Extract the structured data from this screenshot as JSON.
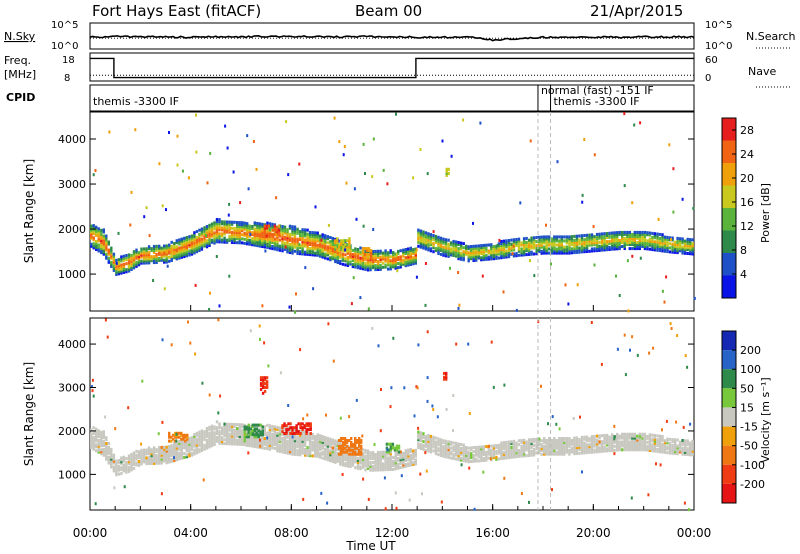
{
  "header": {
    "site": "Fort Hays East (fitACF)",
    "beam": "Beam 00",
    "date": "21/Apr/2015"
  },
  "colors": {
    "black": "#000000",
    "dashed_marker": "#bbbbbb",
    "scatter_grey": "#c8c8c0",
    "power_scale": [
      "#0a14e6",
      "#1e50c8",
      "#2e8a4a",
      "#5ab43c",
      "#c8c81e",
      "#f0a00a",
      "#f06414",
      "#e61e1e"
    ],
    "velocity_scale": [
      "#1428b4",
      "#2864c8",
      "#2e8a4a",
      "#78c83c",
      "#c8c8c0",
      "#f0a00a",
      "#f07814",
      "#f03c14",
      "#e61414"
    ]
  },
  "chart_data": [
    {
      "type": "line",
      "name": "summary-noise",
      "left_label": "N.Sky",
      "right_label": "N.Search",
      "left_ticks": [
        "10^5",
        "10^0"
      ],
      "right_ticks": [
        "10^5",
        "10^0"
      ],
      "note": "noise levels across 00:00–24:00 UT, log scale",
      "x": [
        0,
        1,
        2,
        3,
        4,
        5,
        6,
        7,
        8,
        9,
        10,
        11,
        12,
        13,
        14,
        15,
        16,
        17,
        18,
        19,
        20,
        21,
        22,
        23,
        24
      ],
      "series": [
        {
          "name": "N.Sky",
          "values": [
            2.2,
            2.4,
            2.3,
            2.3,
            2.2,
            2.3,
            2.3,
            2.4,
            2.4,
            2.3,
            2.3,
            2.4,
            2.3,
            2.2,
            2.2,
            2.3,
            1.6,
            1.9,
            2.2,
            2.2,
            2.3,
            2.2,
            2.3,
            2.3,
            2.3
          ]
        },
        {
          "name": "N.Search",
          "values": [
            2.0,
            2.0,
            2.0,
            2.0,
            2.0,
            2.0,
            2.0,
            2.0,
            2.0,
            2.0,
            2.0,
            2.0,
            2.0,
            2.0,
            2.0,
            2.0,
            2.0,
            2.0,
            2.0,
            2.0,
            2.0,
            2.0,
            2.0,
            2.0,
            2.0
          ]
        }
      ]
    },
    {
      "type": "line",
      "name": "summary-frequency",
      "left_label": "Freq.",
      "left_unit": "[MHz]",
      "right_label": "Nave",
      "left_ticks": [
        "18",
        "8"
      ],
      "right_ticks": [
        "60",
        "0"
      ],
      "series": [
        {
          "name": "Freq.",
          "x": [
            0,
            0.95,
            0.95,
            12.95,
            12.95,
            24
          ],
          "values": [
            17.0,
            17.0,
            9.0,
            9.0,
            17.0,
            17.0
          ]
        },
        {
          "name": "Nave",
          "x": [
            0,
            24
          ],
          "values": [
            12,
            12
          ]
        }
      ]
    },
    {
      "type": "table",
      "name": "cpid",
      "label": "CPID",
      "segments": [
        {
          "start_ut": 0,
          "end_ut": 17.8,
          "text": "themis -3300 IF"
        },
        {
          "start_ut": 17.8,
          "end_ut": 18.3,
          "text": "normal (fast) -151 IF"
        },
        {
          "start_ut": 18.3,
          "end_ut": 24,
          "text": "themis -3300 IF"
        }
      ]
    },
    {
      "type": "heatmap",
      "name": "power",
      "ylabel": "Slant Range [km]",
      "xlim": [
        0,
        24
      ],
      "ylim": [
        180,
        4600
      ],
      "yticks": [
        1000,
        2000,
        3000,
        4000
      ],
      "colorbar": {
        "label": "Power [dB]",
        "ticks": [
          "4",
          "8",
          "12",
          "16",
          "20",
          "24",
          "28"
        ],
        "range": [
          0,
          30
        ]
      },
      "markers_ut": [
        17.8,
        18.3
      ],
      "bands": [
        {
          "x": [
            0,
            0.5,
            1.0,
            1.5,
            2.0,
            3.0,
            4.0,
            5.0,
            6.0,
            7.0,
            8.0,
            9.0,
            10.0,
            11.0,
            12.0,
            12.9
          ],
          "center_km": [
            1900,
            1750,
            1200,
            1300,
            1450,
            1500,
            1700,
            2000,
            1950,
            1900,
            1800,
            1700,
            1500,
            1350,
            1350,
            1450
          ],
          "width_km": [
            500,
            550,
            350,
            400,
            350,
            400,
            450,
            500,
            450,
            550,
            600,
            500,
            500,
            450,
            400,
            350
          ],
          "peak_value": 26
        },
        {
          "x": [
            13.0,
            14.0,
            15.0,
            16.0,
            17.0,
            18.0,
            19.0,
            20.0,
            21.0,
            22.0,
            23.0,
            24.0
          ],
          "center_km": [
            1850,
            1650,
            1500,
            1550,
            1650,
            1700,
            1700,
            1750,
            1800,
            1800,
            1700,
            1650
          ],
          "width_km": [
            400,
            400,
            350,
            350,
            400,
            400,
            400,
            400,
            400,
            400,
            350,
            350
          ],
          "peak_value": 20
        }
      ],
      "patches": [
        {
          "ut": 7.2,
          "km": 2000,
          "dut": 0.6,
          "dkm": 250,
          "value": 25
        },
        {
          "ut": 10.0,
          "km": 1700,
          "dut": 0.6,
          "dkm": 300,
          "value": 17
        },
        {
          "ut": 11.0,
          "km": 1500,
          "dut": 0.4,
          "dkm": 250,
          "value": 22
        },
        {
          "ut": 14.2,
          "km": 3300,
          "dut": 0.15,
          "dkm": 150,
          "value": 15
        }
      ]
    },
    {
      "type": "heatmap",
      "name": "velocity",
      "ylabel": "Slant Range [km]",
      "xlabel": "Time UT",
      "xticks": [
        "00:00",
        "04:00",
        "08:00",
        "12:00",
        "16:00",
        "20:00",
        "00:00"
      ],
      "xlim": [
        0,
        24
      ],
      "ylim": [
        180,
        4600
      ],
      "yticks": [
        1000,
        2000,
        3000,
        4000
      ],
      "colorbar": {
        "label": "Velocity [m s⁻¹]",
        "ticks": [
          "200",
          "100",
          "50",
          "15",
          "-15",
          "-50",
          "-100",
          "-200"
        ],
        "range": [
          -250,
          250
        ]
      },
      "markers_ut": [
        17.8,
        18.3
      ],
      "bands": [
        {
          "x": [
            0,
            0.5,
            1.0,
            1.5,
            2.0,
            3.0,
            4.0,
            5.0,
            6.0,
            7.0,
            8.0,
            9.0,
            10.0,
            11.0,
            12.0,
            12.9
          ],
          "center_km": [
            1900,
            1750,
            1200,
            1300,
            1450,
            1500,
            1700,
            2000,
            1950,
            1900,
            1800,
            1700,
            1500,
            1350,
            1350,
            1450
          ],
          "width_km": [
            500,
            550,
            350,
            400,
            350,
            400,
            450,
            500,
            450,
            550,
            600,
            500,
            500,
            450,
            400,
            350
          ],
          "value": 0
        },
        {
          "x": [
            13.0,
            14.0,
            15.0,
            16.0,
            17.0,
            18.0,
            19.0,
            20.0,
            21.0,
            22.0,
            23.0,
            24.0
          ],
          "center_km": [
            1850,
            1650,
            1500,
            1550,
            1650,
            1700,
            1700,
            1750,
            1800,
            1800,
            1700,
            1650
          ],
          "width_km": [
            400,
            400,
            350,
            350,
            400,
            400,
            400,
            400,
            400,
            400,
            350,
            350
          ],
          "value": 0
        }
      ],
      "patches": [
        {
          "ut": 3.5,
          "km": 1900,
          "dut": 0.8,
          "dkm": 200,
          "value": -60
        },
        {
          "ut": 6.5,
          "km": 2050,
          "dut": 0.8,
          "dkm": 300,
          "value": 60
        },
        {
          "ut": 8.2,
          "km": 2100,
          "dut": 1.2,
          "dkm": 250,
          "value": -200
        },
        {
          "ut": 10.3,
          "km": 1700,
          "dut": 0.9,
          "dkm": 400,
          "value": -80
        },
        {
          "ut": 12.0,
          "km": 1650,
          "dut": 0.5,
          "dkm": 200,
          "value": 45
        },
        {
          "ut": 14.1,
          "km": 3300,
          "dut": 0.15,
          "dkm": 150,
          "value": -200
        },
        {
          "ut": 6.9,
          "km": 3100,
          "dut": 0.3,
          "dkm": 400,
          "value": -200
        }
      ]
    }
  ]
}
